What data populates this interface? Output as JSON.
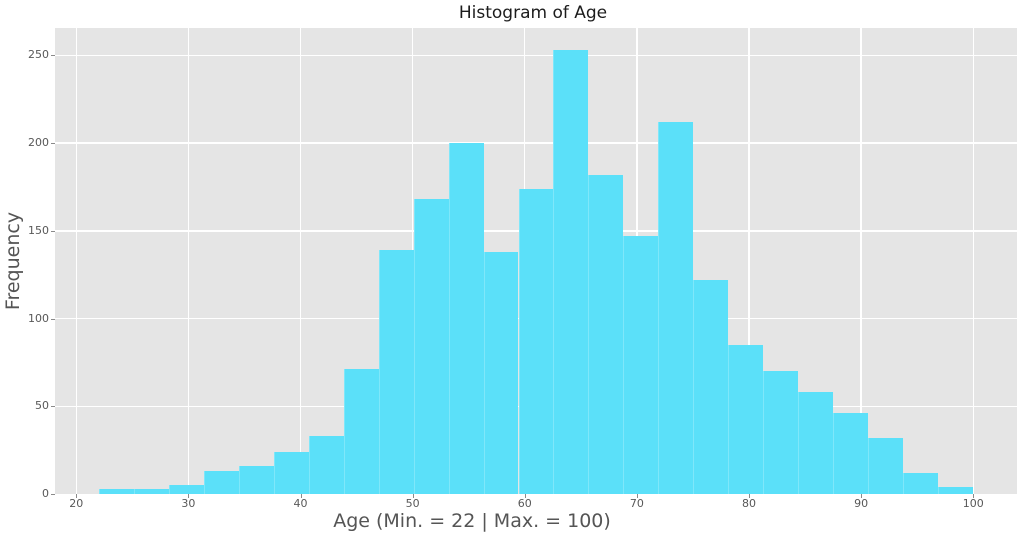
{
  "chart_data": {
    "type": "bar",
    "subtype": "histogram",
    "title": "Histogram of Age",
    "xlabel": "Age (Min. = 22 | Max. = 100)",
    "ylabel": "Frequency",
    "bins": {
      "start": 22,
      "end": 100,
      "count": 25,
      "width": 3.12
    },
    "frequencies": [
      3,
      3,
      5,
      13,
      16,
      24,
      33,
      71,
      139,
      168,
      200,
      138,
      174,
      253,
      182,
      147,
      212,
      122,
      85,
      70,
      58,
      46,
      32,
      12,
      4
    ],
    "xticks": [
      20,
      30,
      40,
      50,
      60,
      70,
      80,
      90,
      100
    ],
    "yticks": [
      0,
      50,
      100,
      150,
      200,
      250
    ],
    "xlim": [
      18.1,
      103.9
    ],
    "ylim": [
      0,
      265.65
    ],
    "grid": true,
    "legend": null,
    "style": {
      "bar_color": "#5be0f9",
      "plot_background": "#e5e5e5",
      "grid_color": "#ffffff",
      "title_color": "#1c1c1c",
      "axis_label_color": "#555555",
      "tick_label_color": "#585858"
    }
  }
}
